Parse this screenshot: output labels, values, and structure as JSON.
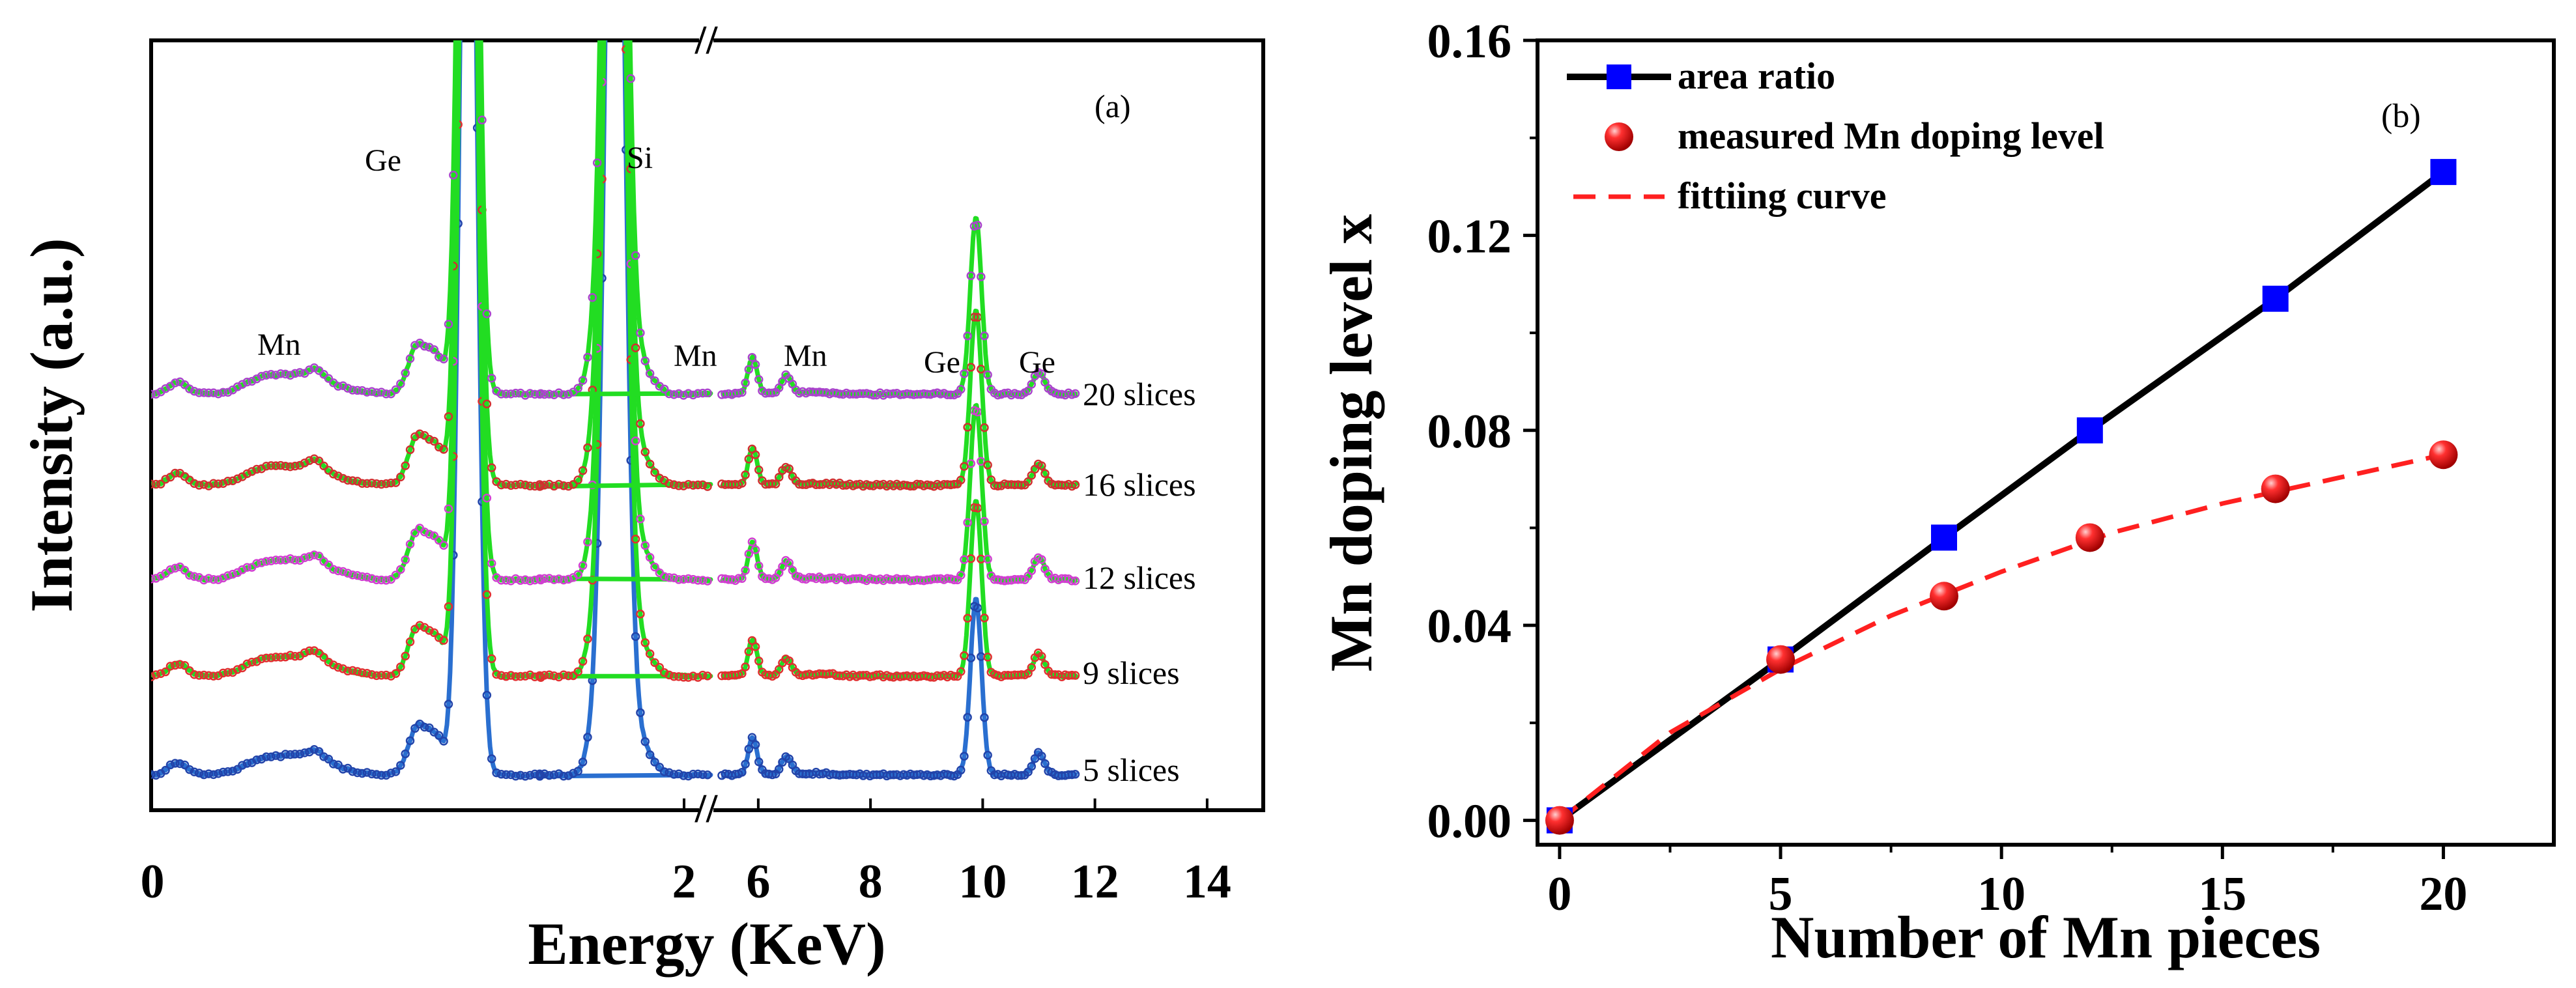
{
  "chart_data": [
    {
      "type": "line",
      "panel_label": "(a)",
      "xlabel": "Energy (KeV)",
      "ylabel": "Intensity (a.u.)",
      "x_segments": [
        {
          "range": [
            0,
            2
          ],
          "ticks": [
            "0",
            "2"
          ]
        },
        {
          "range": [
            5.2,
            15
          ],
          "ticks": [
            "6",
            "8",
            "10",
            "12",
            "14"
          ]
        }
      ],
      "axis_break_mark": "//",
      "series": [
        {
          "name": "5 slices",
          "label": "5 slices",
          "line_color": "#2a6fd0",
          "marker_color": "#2244aa",
          "seed": 11
        },
        {
          "name": "9 slices",
          "label": "9 slices",
          "line_color": "#22dd22",
          "marker_color": "#e03030",
          "seed": 23
        },
        {
          "name": "12 slices",
          "label": "12 slices",
          "line_color": "#22dd22",
          "marker_color": "#d040d0",
          "seed": 37
        },
        {
          "name": "16 slices",
          "label": "16 slices",
          "line_color": "#22dd22",
          "marker_color": "#d03030",
          "seed": 41
        },
        {
          "name": "20 slices",
          "label": "20 slices",
          "line_color": "#22dd22",
          "marker_color": "#aa44cc",
          "seed": 53
        }
      ],
      "peak_annotations": [
        "Mn",
        "Ge",
        "Si",
        "Mn",
        "Mn",
        "Ge",
        "Ge"
      ]
    },
    {
      "type": "line",
      "panel_label": "(b)",
      "xlabel": "Number of Mn pieces",
      "ylabel": "Mn doping level x",
      "xlim": [
        -0.5,
        22.5
      ],
      "ylim": [
        -0.005,
        0.16
      ],
      "x_ticks": [
        "0",
        "5",
        "10",
        "15",
        "20"
      ],
      "y_ticks": [
        "0.00",
        "0.04",
        "0.08",
        "0.12",
        "0.16"
      ],
      "series": [
        {
          "name": "area ratio",
          "style": "line-square",
          "color": "#0000ff",
          "line_color": "#000000",
          "x": [
            0,
            5,
            8.7,
            12,
            16.2,
            20
          ],
          "y": [
            0.0,
            0.033,
            0.058,
            0.08,
            0.107,
            0.133
          ]
        },
        {
          "name": "measured Mn doping level",
          "style": "sphere",
          "color": "#e02020",
          "x": [
            0,
            5,
            8.7,
            12,
            16.2,
            20
          ],
          "y": [
            0.0,
            0.033,
            0.046,
            0.058,
            0.068,
            0.075
          ]
        },
        {
          "name": "fittiing curve",
          "style": "dashed",
          "color": "#ff2020",
          "x": [
            0,
            2.5,
            5,
            7.5,
            10,
            12.5,
            15,
            17.5,
            20
          ],
          "y": [
            0.0,
            0.018,
            0.031,
            0.042,
            0.051,
            0.059,
            0.065,
            0.07,
            0.075
          ]
        }
      ]
    }
  ]
}
